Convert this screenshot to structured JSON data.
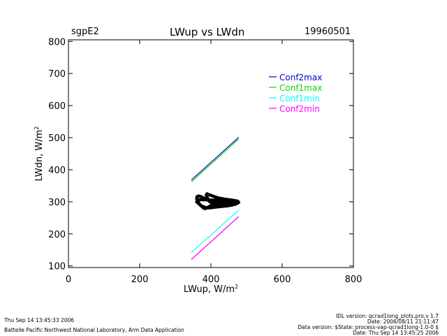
{
  "header": {
    "site": "sgpE2",
    "title": "LWup vs LWdn",
    "date": "19960501"
  },
  "footer": {
    "run_time": "Thu Sep 14 13:45:33 2006",
    "institution": "Battelle Pacific Northwest National Laboratory, Arm Data Application",
    "idl_version": "IDL version: qcrad1long_plots.pro,v 1.7",
    "date_line": "Date: 2006/08/11 21:11:47",
    "data_version": "Data version: $State: process-vap-qcrad1long-1.0-0 $",
    "data_date": "Date: Thu Sep 14 13:45:25 2006"
  },
  "colors": {
    "Conf2max": "#0000cc",
    "Conf1max": "#00dd00",
    "Conf1min": "#00ffff",
    "Conf2min": "#ff00ff",
    "data": "#000000"
  },
  "chart_data": {
    "type": "line",
    "title": "LWup vs LWdn",
    "xlabel": "LWup, W/m",
    "xlabel_sup": "2",
    "ylabel": "LWdn, W/m",
    "ylabel_sup": "2",
    "xlim": [
      0,
      800
    ],
    "ylim": [
      95,
      805
    ],
    "xticks": [
      0,
      200,
      400,
      600,
      800
    ],
    "yticks": [
      100,
      200,
      300,
      400,
      500,
      600,
      700,
      800
    ],
    "grid": false,
    "legend_position": "top-right",
    "series": [
      {
        "name": "Conf2max",
        "color_key": "Conf2max",
        "x": [
          345,
          478
        ],
        "y": [
          368,
          501
        ]
      },
      {
        "name": "Conf1max",
        "color_key": "Conf1max",
        "x": [
          345,
          478
        ],
        "y": [
          362,
          496
        ]
      },
      {
        "name": "Conf1min",
        "color_key": "Conf1min",
        "x": [
          345,
          478
        ],
        "y": [
          142,
          274
        ]
      },
      {
        "name": "Conf2min",
        "color_key": "Conf2min",
        "x": [
          345,
          478
        ],
        "y": [
          120,
          254
        ]
      }
    ],
    "observed": {
      "x": [
        360,
        368,
        375,
        380,
        385,
        390,
        400,
        410,
        420,
        430,
        440,
        450,
        460,
        470,
        472,
        470,
        460,
        450,
        440,
        430,
        420,
        410,
        400,
        395,
        392,
        390,
        388,
        387,
        389,
        395,
        405,
        420,
        440,
        460,
        475,
        478,
        472,
        460,
        445,
        425,
        410,
        395,
        385,
        375,
        368,
        365,
        362,
        360,
        361,
        366,
        372,
        380,
        390,
        402,
        418,
        435,
        455,
        470,
        476,
        468,
        450,
        430,
        410,
        390,
        375,
        366,
        362
      ],
      "y": [
        300,
        292,
        285,
        280,
        279,
        282,
        288,
        290,
        291,
        292,
        293,
        295,
        296,
        298,
        300,
        302,
        303,
        301,
        298,
        296,
        295,
        296,
        298,
        302,
        308,
        313,
        318,
        322,
        325,
        322,
        318,
        312,
        308,
        305,
        302,
        298,
        294,
        290,
        287,
        285,
        283,
        281,
        282,
        286,
        292,
        298,
        304,
        310,
        316,
        318,
        316,
        312,
        306,
        300,
        296,
        293,
        291,
        293,
        297,
        300,
        302,
        304,
        305,
        306,
        307,
        306,
        303
      ]
    }
  }
}
